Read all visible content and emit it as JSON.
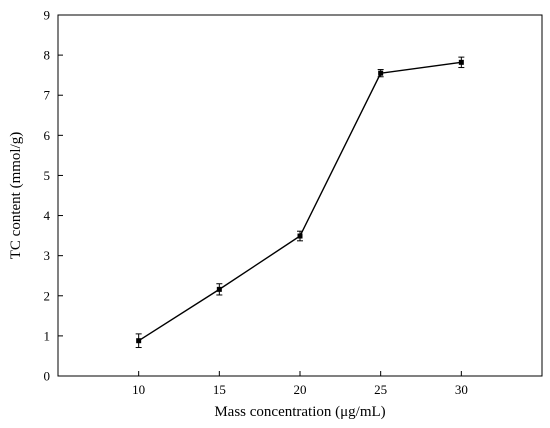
{
  "chart_data": {
    "type": "line",
    "title": "",
    "xlabel": "Mass concentration (μg/mL)",
    "ylabel": "TC content (mmol/g)",
    "xlim": [
      5,
      35
    ],
    "ylim": [
      0,
      9
    ],
    "xticks": [
      10,
      15,
      20,
      25,
      30
    ],
    "yticks": [
      0,
      1,
      2,
      3,
      4,
      5,
      6,
      7,
      8,
      9
    ],
    "grid": false,
    "series": [
      {
        "x": [
          10,
          15,
          20,
          25,
          30
        ],
        "y": [
          0.88,
          2.16,
          3.49,
          7.55,
          7.82
        ],
        "error": [
          0.17,
          0.14,
          0.12,
          0.09,
          0.13
        ]
      }
    ]
  }
}
